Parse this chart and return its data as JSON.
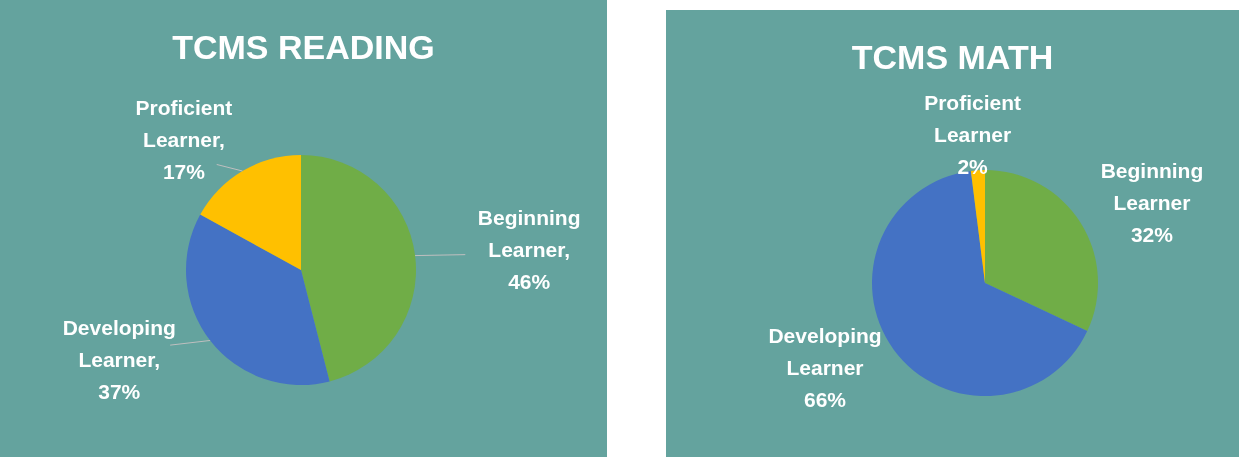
{
  "chart_data": [
    {
      "type": "pie",
      "title": "TCMS READING",
      "categories": [
        "Beginning Learner",
        "Developing Learner",
        "Proficient Learner"
      ],
      "values": [
        46,
        37,
        17
      ],
      "colors": [
        "#70ad47",
        "#4472c4",
        "#ffc000"
      ],
      "value_labels": [
        ", 46%",
        ", 37%",
        ", 17%"
      ]
    },
    {
      "type": "pie",
      "title": "TCMS MATH",
      "categories": [
        "Beginning Learner",
        "Developing Learner",
        "Proficient Learner"
      ],
      "values": [
        32,
        66,
        2
      ],
      "colors": [
        "#70ad47",
        "#4472c4",
        "#ffc000"
      ],
      "value_labels": [
        "32%",
        "66%",
        "2%"
      ]
    }
  ]
}
